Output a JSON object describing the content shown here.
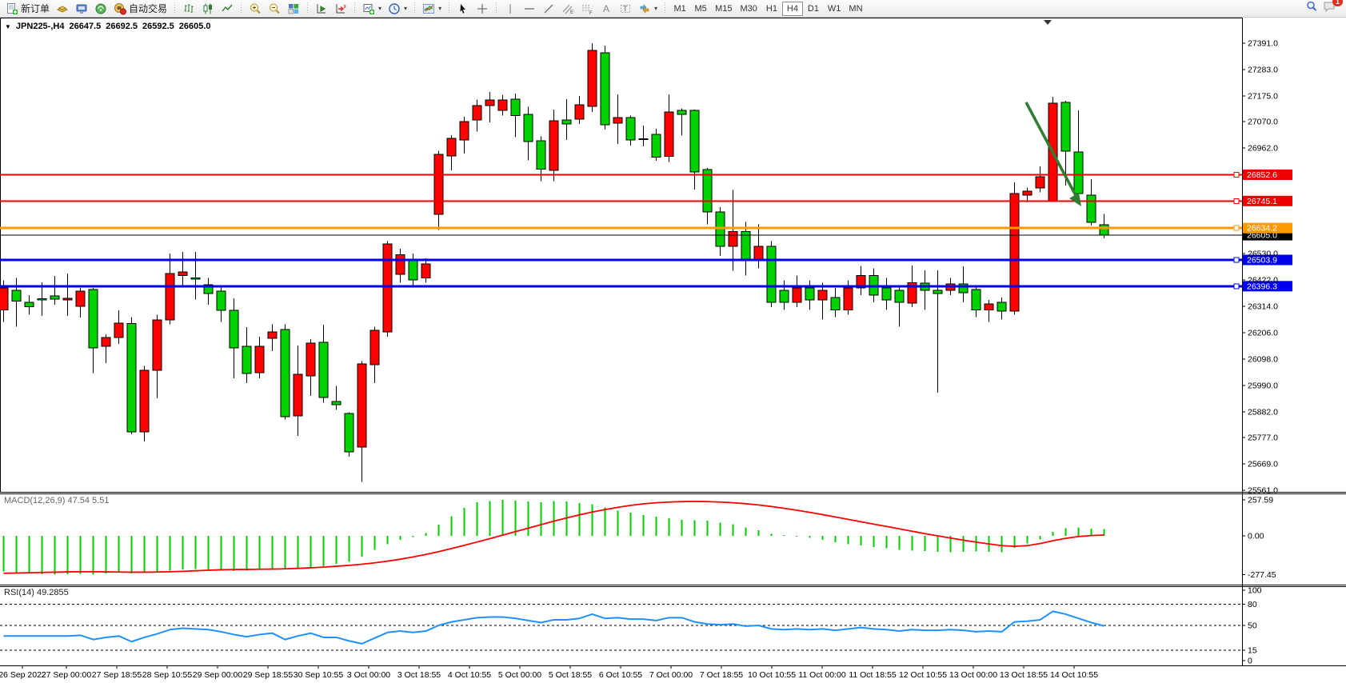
{
  "toolbar": {
    "new_order_label": "新订单",
    "auto_trading_label": "自动交易",
    "timeframes": [
      "M1",
      "M5",
      "M15",
      "M30",
      "H1",
      "H4",
      "D1",
      "W1",
      "MN"
    ],
    "active_timeframe": "H4",
    "chat_badge": "1",
    "icon_names": [
      "new-order-icon",
      "market-watch-icon",
      "terminal-icon",
      "signals-icon",
      "autotrading-icon",
      "bar-chart-icon",
      "candlestick-icon",
      "line-chart-icon",
      "zoom-in-icon",
      "zoom-out-icon",
      "tile-windows-icon",
      "auto-scroll-icon",
      "chart-shift-icon",
      "new-chart-icon",
      "period-icon",
      "indicators-icon",
      "cursor-icon",
      "crosshair-icon",
      "vertical-line-icon",
      "horizontal-line-icon",
      "trendline-icon",
      "channel-icon",
      "fibonacci-icon",
      "text-icon",
      "label-icon",
      "shapes-icon",
      "search-icon",
      "chat-icon"
    ]
  },
  "chart_header": {
    "symbol_period": "JPN225-,H4",
    "open": "26647.5",
    "high": "26692.5",
    "low": "26592.5",
    "close": "26605.0"
  },
  "chart_data": {
    "type": "candlestick",
    "symbol": "JPN225-",
    "period": "H4",
    "bull_color": "#ff0000",
    "bear_color": "#00d200",
    "wick_color": "#000000",
    "price_range": [
      25561,
      27391
    ],
    "candles": [
      [
        26300,
        26420,
        26250,
        26390
      ],
      [
        26380,
        26430,
        26230,
        26335
      ],
      [
        26330,
        26360,
        26280,
        26312
      ],
      [
        26345,
        26412,
        26275,
        26340
      ],
      [
        26357,
        26438,
        26320,
        26344
      ],
      [
        26340,
        26448,
        26275,
        26346
      ],
      [
        26314,
        26390,
        26268,
        26376
      ],
      [
        26382,
        26390,
        26040,
        26143
      ],
      [
        26150,
        26200,
        26082,
        26187
      ],
      [
        26187,
        26297,
        26160,
        26246
      ],
      [
        26243,
        26270,
        25790,
        25800
      ],
      [
        25800,
        26070,
        25761,
        26052
      ],
      [
        26052,
        26280,
        25937,
        26259
      ],
      [
        26259,
        26530,
        26240,
        26448
      ],
      [
        26440,
        26537,
        26400,
        26455
      ],
      [
        26430,
        26537,
        26342,
        26428
      ],
      [
        26402,
        26430,
        26320,
        26366
      ],
      [
        26376,
        26400,
        26250,
        26297
      ],
      [
        26298,
        26347,
        26019,
        26144
      ],
      [
        26150,
        26229,
        26000,
        26039
      ],
      [
        26043,
        26190,
        26020,
        26150
      ],
      [
        26183,
        26240,
        26130,
        26209
      ],
      [
        26219,
        26240,
        25850,
        25862
      ],
      [
        25866,
        26154,
        25783,
        26036
      ],
      [
        26029,
        26180,
        25947,
        26163
      ],
      [
        26166,
        26239,
        25920,
        25940
      ],
      [
        25924,
        25988,
        25890,
        25911
      ],
      [
        25875,
        25880,
        25698,
        25718
      ],
      [
        25737,
        26090,
        25595,
        26078
      ],
      [
        26075,
        26230,
        26000,
        26216
      ],
      [
        26210,
        26580,
        26190,
        26570
      ],
      [
        26445,
        26550,
        26410,
        26525
      ],
      [
        26504,
        26530,
        26400,
        26422
      ],
      [
        26430,
        26510,
        26410,
        26487
      ],
      [
        26690,
        26950,
        26627,
        26936
      ],
      [
        26929,
        27015,
        26870,
        27001
      ],
      [
        26995,
        27090,
        26940,
        27070
      ],
      [
        27077,
        27160,
        27030,
        27136
      ],
      [
        27136,
        27191,
        27067,
        27159
      ],
      [
        27116,
        27180,
        27095,
        27159
      ],
      [
        27162,
        27185,
        27006,
        27094
      ],
      [
        27100,
        27130,
        26911,
        26989
      ],
      [
        26992,
        27010,
        26826,
        26875
      ],
      [
        26871,
        27119,
        26826,
        27074
      ],
      [
        27077,
        27162,
        26995,
        27061
      ],
      [
        27080,
        27175,
        27060,
        27139
      ],
      [
        27133,
        27391,
        27110,
        27362
      ],
      [
        27352,
        27381,
        27038,
        27057
      ],
      [
        27064,
        27182,
        26979,
        27087
      ],
      [
        27087,
        27095,
        26972,
        26995
      ],
      [
        27000,
        27054,
        26969,
        26996
      ],
      [
        27018,
        27040,
        26910,
        26924
      ],
      [
        26927,
        27182,
        26905,
        27110
      ],
      [
        27116,
        27125,
        27013,
        27100
      ],
      [
        27116,
        27120,
        26792,
        26864
      ],
      [
        26874,
        26880,
        26650,
        26700
      ],
      [
        26700,
        26720,
        26520,
        26560
      ],
      [
        26560,
        26790,
        26460,
        26620
      ],
      [
        26620,
        26660,
        26440,
        26500
      ],
      [
        26500,
        26650,
        26470,
        26560
      ],
      [
        26560,
        26580,
        26310,
        26330
      ],
      [
        26380,
        26420,
        26300,
        26330
      ],
      [
        26330,
        26440,
        26310,
        26390
      ],
      [
        26390,
        26420,
        26300,
        26340
      ],
      [
        26340,
        26410,
        26260,
        26380
      ],
      [
        26350,
        26390,
        26270,
        26300
      ],
      [
        26300,
        26420,
        26280,
        26390
      ],
      [
        26390,
        26480,
        26360,
        26440
      ],
      [
        26440,
        26470,
        26330,
        26360
      ],
      [
        26390,
        26430,
        26300,
        26340
      ],
      [
        26380,
        26400,
        26230,
        26330
      ],
      [
        26327,
        26481,
        26310,
        26410
      ],
      [
        26409,
        26461,
        26300,
        26379
      ],
      [
        26379,
        26461,
        25960,
        26366
      ],
      [
        26379,
        26430,
        26360,
        26406
      ],
      [
        26405,
        26478,
        26330,
        26370
      ],
      [
        26383,
        26400,
        26270,
        26300
      ],
      [
        26300,
        26340,
        26250,
        26324
      ],
      [
        26330,
        26350,
        26260,
        26295
      ],
      [
        26295,
        26821,
        26280,
        26776
      ],
      [
        26769,
        26800,
        26740,
        26785
      ],
      [
        26798,
        26887,
        26780,
        26844
      ],
      [
        26743,
        27172,
        26743,
        27145
      ],
      [
        27149,
        27155,
        26808,
        26949
      ],
      [
        26946,
        27116,
        26750,
        26776
      ],
      [
        26769,
        26835,
        26645,
        26658
      ],
      [
        26647.5,
        26692.5,
        26592.5,
        26605
      ]
    ],
    "price_axis_ticks": [
      "27391.0",
      "27283.0",
      "27175.0",
      "27070.0",
      "26962.0",
      "26530.0",
      "26422.0",
      "26314.0",
      "26206.0",
      "26098.0",
      "25990.0",
      "25882.0",
      "25777.0",
      "25669.0",
      "25561.0"
    ],
    "hlines": [
      {
        "label": "26852.6",
        "price": 26852.6,
        "color": "#ee0000",
        "width": 2
      },
      {
        "label": "26745.1",
        "price": 26745.1,
        "color": "#ee0000",
        "width": 2
      },
      {
        "label": "26634.2",
        "price": 26634.2,
        "color": "#ff9900",
        "width": 3
      },
      {
        "label": "26503.9",
        "price": 26503.9,
        "color": "#0000ee",
        "width": 3
      },
      {
        "label": "26396.3",
        "price": 26396.3,
        "color": "#0000ee",
        "width": 3
      }
    ],
    "current_price": {
      "label": "26605.0",
      "price": 26605,
      "bg": "#000000",
      "fg": "#ffffff"
    },
    "macd": {
      "label": "MACD(12,26,9) 47.54 5.51",
      "params": "12,26,9",
      "value_main": 47.54,
      "value_signal": 5.51,
      "main_color": "#00cc00",
      "signal_color": "#ff0000",
      "axis_labels": [
        "257.59",
        "0.00",
        "-277.45"
      ],
      "axis_values": [
        257.59,
        0,
        -277.45
      ],
      "main": [
        -255,
        -262,
        -270,
        -274,
        -277,
        -275,
        -272,
        -277.45,
        -270,
        -264,
        -268,
        -262,
        -258,
        -248,
        -240,
        -238,
        -242,
        -248,
        -252,
        -250,
        -242,
        -235,
        -240,
        -232,
        -225,
        -218,
        -200,
        -185,
        -150,
        -100,
        -60,
        -30,
        -10,
        20,
        80,
        140,
        200,
        240,
        250,
        257.59,
        252,
        245,
        240,
        248,
        247,
        235,
        225,
        203,
        180,
        165,
        150,
        138,
        125,
        115,
        112,
        110,
        95,
        83,
        60,
        39,
        15,
        5,
        -5,
        -15,
        -30,
        -45,
        -60,
        -70,
        -80,
        -90,
        -99,
        -105,
        -110,
        -115,
        -118,
        -115,
        -112,
        -115,
        -118,
        -85,
        -55,
        -25,
        30,
        55,
        60,
        52,
        47.54
      ],
      "signal": [
        -268,
        -266,
        -264,
        -262,
        -260,
        -258,
        -257,
        -257,
        -258,
        -259,
        -260,
        -260,
        -259,
        -257,
        -254,
        -250,
        -246,
        -243,
        -241,
        -240,
        -239,
        -238,
        -236,
        -233,
        -229,
        -224,
        -218,
        -211,
        -203,
        -193,
        -181,
        -167,
        -151,
        -133,
        -113,
        -91,
        -68,
        -44,
        -20,
        5,
        30,
        55,
        80,
        105,
        128,
        150,
        170,
        188,
        204,
        218,
        229,
        237,
        242,
        245,
        246,
        245,
        242,
        237,
        230,
        221,
        210,
        197,
        183,
        168,
        152,
        135,
        118,
        101,
        84,
        67,
        50,
        33,
        16,
        0,
        -16,
        -31,
        -45,
        -58,
        -70,
        -75,
        -70,
        -55,
        -35,
        -18,
        -5,
        2,
        5.51
      ]
    },
    "rsi": {
      "label": "RSI(14) 49.2855",
      "period": 14,
      "value": 49.2855,
      "color": "#1e90ff",
      "levels": [
        80,
        50,
        15
      ],
      "axis_labels": [
        "100",
        "80",
        "50",
        "15",
        "0"
      ],
      "axis_values": [
        100,
        80,
        50,
        15,
        0
      ],
      "series": [
        35,
        35,
        35,
        35,
        35,
        35,
        36,
        30,
        33,
        35,
        27,
        33,
        38,
        44,
        46,
        45,
        44,
        41,
        37,
        34,
        37,
        39,
        30,
        35,
        39,
        33,
        33,
        28,
        24,
        32,
        40,
        42,
        40,
        42,
        50,
        55,
        58,
        61,
        62,
        62,
        60,
        57,
        54,
        58,
        58,
        60,
        66,
        60,
        61,
        59,
        59,
        57,
        61,
        61,
        55,
        52,
        51,
        52,
        49,
        50,
        45,
        44,
        45,
        44,
        45,
        43,
        45,
        47,
        45,
        44,
        42,
        44,
        43,
        43,
        44,
        43,
        41,
        42,
        41,
        55,
        56,
        58,
        70,
        66,
        60,
        54,
        49.2855
      ]
    },
    "time_labels": [
      "26 Sep 2022",
      "27 Sep 00:00",
      "27 Sep 18:55",
      "28 Sep 10:55",
      "29 Sep 00:00",
      "29 Sep 18:55",
      "30 Sep 10:55",
      "3 Oct 00:00",
      "3 Oct 18:55",
      "4 Oct 10:55",
      "5 Oct 00:00",
      "5 Oct 18:55",
      "6 Oct 10:55",
      "7 Oct 00:00",
      "7 Oct 18:55",
      "10 Oct 10:55",
      "11 Oct 00:00",
      "11 Oct 18:55",
      "12 Oct 10:55",
      "13 Oct 00:00",
      "13 Oct 18:55",
      "14 Oct 10:55"
    ],
    "arrow_object": {
      "color": "#2e7d32"
    }
  }
}
